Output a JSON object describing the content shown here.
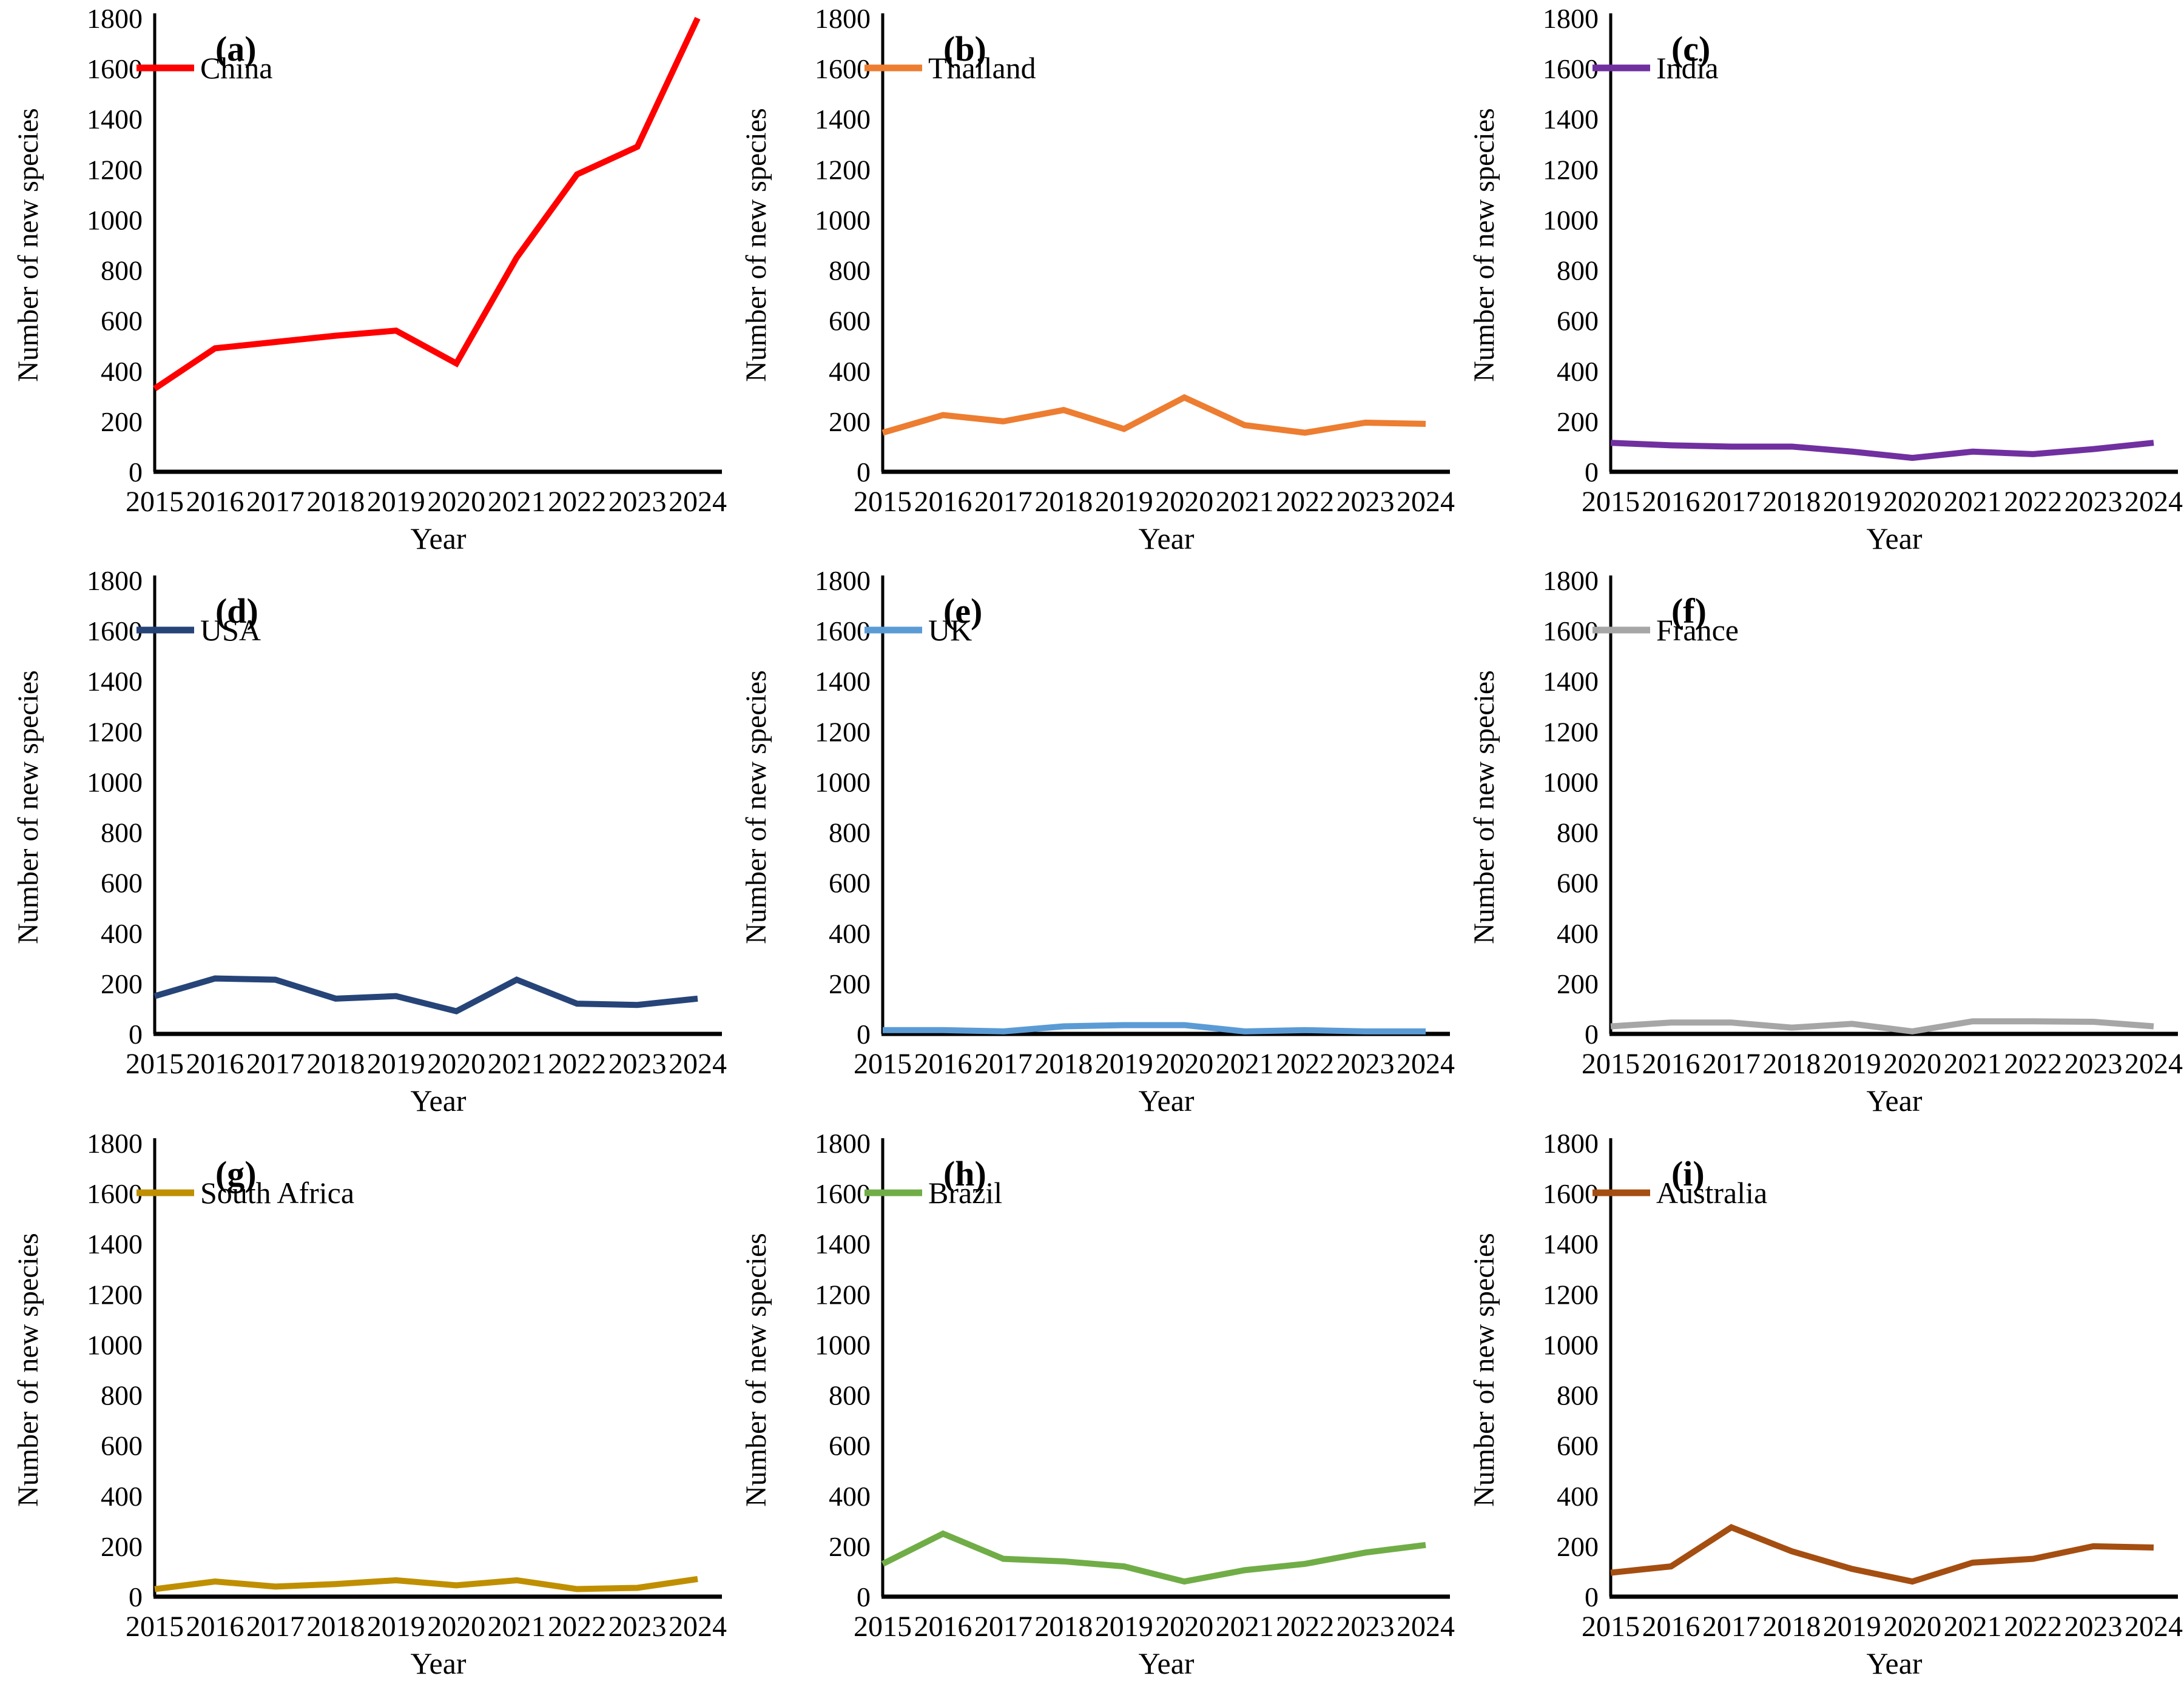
{
  "chart_data": {
    "type": "line",
    "categories": [
      "2015",
      "2016",
      "2017",
      "2018",
      "2019",
      "2020",
      "2021",
      "2022",
      "2023",
      "2024"
    ],
    "common": {
      "xlabel": "Year",
      "ylabel": "Number of new species",
      "ylim": [
        0,
        1800
      ],
      "ytick_step": 200,
      "yticks": [
        0,
        200,
        400,
        600,
        800,
        1000,
        1200,
        1400,
        1600,
        1800
      ],
      "grid": false,
      "legend_position": "top-left",
      "axis_color": "#000000"
    },
    "charts": [
      {
        "panel_label": "(a)",
        "name": "China",
        "color": "#FF0000",
        "values": [
          330,
          490,
          515,
          540,
          560,
          430,
          850,
          1180,
          1290,
          1800
        ]
      },
      {
        "panel_label": "(b)",
        "name": "Thailand",
        "color": "#ED7D31",
        "values": [
          155,
          225,
          200,
          245,
          170,
          295,
          185,
          155,
          195,
          190
        ]
      },
      {
        "panel_label": "(c)",
        "name": "India",
        "color": "#7030A0",
        "values": [
          115,
          105,
          100,
          100,
          80,
          55,
          80,
          70,
          90,
          115
        ]
      },
      {
        "panel_label": "(d)",
        "name": "USA",
        "color": "#264478",
        "values": [
          150,
          220,
          215,
          140,
          150,
          90,
          215,
          120,
          115,
          140
        ]
      },
      {
        "panel_label": "(e)",
        "name": "UK",
        "color": "#5B9BD5",
        "values": [
          15,
          15,
          10,
          30,
          35,
          35,
          10,
          15,
          10,
          10
        ]
      },
      {
        "panel_label": "(f)",
        "name": "France",
        "color": "#A6A6A6",
        "values": [
          30,
          45,
          45,
          25,
          40,
          10,
          50,
          50,
          48,
          30
        ]
      },
      {
        "panel_label": "(g)",
        "name": "South Africa",
        "color": "#BF8F00",
        "values": [
          30,
          60,
          40,
          50,
          65,
          45,
          65,
          30,
          35,
          70
        ]
      },
      {
        "panel_label": "(h)",
        "name": "Brazil",
        "color": "#70AD47",
        "values": [
          130,
          250,
          150,
          140,
          120,
          60,
          105,
          130,
          175,
          205
        ]
      },
      {
        "panel_label": "(i)",
        "name": "Australia",
        "color": "#A54E11",
        "values": [
          95,
          120,
          275,
          180,
          110,
          60,
          135,
          150,
          200,
          195
        ]
      }
    ]
  }
}
